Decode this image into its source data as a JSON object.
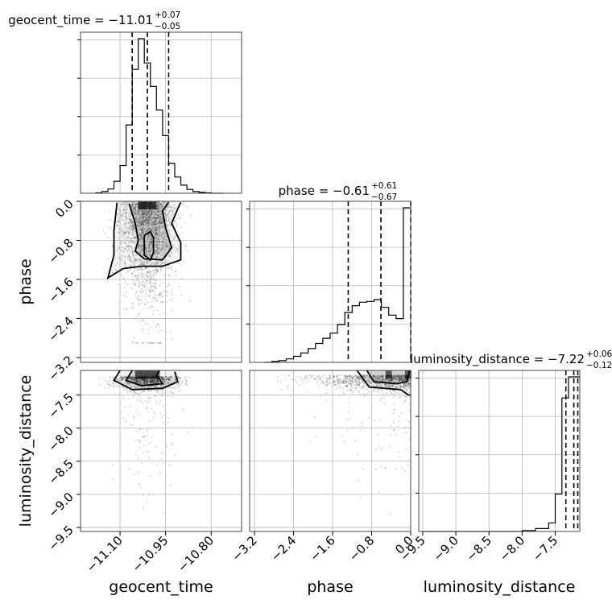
{
  "chart_data": {
    "type": "corner",
    "parameters": [
      "geocent_time",
      "phase",
      "luminosity_distance"
    ],
    "axis_labels": {
      "geocent_time": "geocent_time",
      "phase": "phase",
      "luminosity_distance": "luminosity_distance"
    },
    "ranges": {
      "geocent_time": [
        -11.23,
        -10.7
      ],
      "phase": [
        -3.3,
        0.0
      ],
      "luminosity_distance": [
        -9.56,
        -7.13
      ]
    },
    "ticks": {
      "geocent_time": [
        -11.1,
        -10.95,
        -10.8
      ],
      "phase": [
        -3.2,
        -2.4,
        -1.6,
        -0.8,
        0.0
      ],
      "luminosity_distance": [
        -9.5,
        -9.0,
        -8.5,
        -8.0,
        -7.5
      ]
    },
    "tick_labels": {
      "geocent_time": [
        "−11.10",
        "−10.95",
        "−10.80"
      ],
      "phase_y": [
        "−3.2",
        "−2.4",
        "−1.6",
        "−0.8",
        "0.0"
      ],
      "phase_x": [
        "−3.2",
        "−2.4",
        "−1.6",
        "−0.8",
        "0.0"
      ],
      "luminosity_distance_y": [
        "−9.5",
        "−9.0",
        "−8.5",
        "−8.0",
        "−7.5"
      ],
      "luminosity_distance_x": [
        "−9.5",
        "−9.0",
        "−8.5",
        "−8.0",
        "−7.5"
      ]
    },
    "titles": {
      "geocent_time": {
        "text": "geocent_time = −11.01",
        "plus": "+0.07",
        "minus": "−0.05"
      },
      "phase": {
        "text": "phase = −0.61",
        "plus": "+0.61",
        "minus": "−0.67"
      },
      "luminosity_distance": {
        "text": "luminosity_distance = −7.22",
        "plus": "+0.06",
        "minus": "−0.12"
      }
    },
    "quantiles": {
      "geocent_time": [
        -11.06,
        -11.01,
        -10.94
      ],
      "phase": [
        -1.28,
        -0.61,
        0.0
      ],
      "luminosity_distance": [
        -7.34,
        -7.22,
        -7.16
      ]
    },
    "histograms": {
      "geocent_time": {
        "edges": [
          -11.18,
          -11.16,
          -11.14,
          -11.12,
          -11.1,
          -11.08,
          -11.06,
          -11.04,
          -11.02,
          -11.0,
          -10.98,
          -10.96,
          -10.94,
          -10.92,
          -10.9,
          -10.88,
          -10.86,
          -10.84,
          -10.82,
          -10.8,
          -10.78,
          -10.76
        ],
        "counts": [
          1,
          4,
          10,
          28,
          65,
          160,
          290,
          362,
          305,
          250,
          195,
          135,
          70,
          38,
          19,
          9,
          4,
          2,
          1,
          0,
          0
        ]
      },
      "phase": {
        "edges": [
          -3.0,
          -2.85,
          -2.7,
          -2.55,
          -2.4,
          -2.25,
          -2.1,
          -1.95,
          -1.8,
          -1.65,
          -1.5,
          -1.35,
          -1.2,
          -1.05,
          -0.9,
          -0.75,
          -0.6,
          -0.45,
          -0.3,
          -0.15,
          0.0
        ],
        "counts": [
          0,
          1,
          2,
          4,
          7,
          11,
          16,
          22,
          28,
          34,
          44,
          58,
          66,
          70,
          71,
          73,
          64,
          55,
          51,
          180
        ]
      },
      "luminosity_distance": {
        "edges": [
          -9.5,
          -9.1,
          -8.7,
          -8.3,
          -8.0,
          -7.8,
          -7.6,
          -7.5,
          -7.4,
          -7.3,
          -7.2,
          -7.13
        ],
        "counts": [
          0,
          0,
          0,
          0,
          1,
          3,
          9,
          39,
          139,
          161,
          161
        ]
      }
    },
    "density_2d": {
      "phase_vs_geocent_time": {
        "x_range": [
          -11.14,
          -10.89
        ],
        "y_range": [
          -1.6,
          0.0
        ],
        "contours": [
          [
            [
              -11.07,
              -0.05
            ],
            [
              -11.05,
              -0.45
            ],
            [
              -11.04,
              -0.8
            ],
            [
              -11.05,
              -1.02
            ],
            [
              -11.02,
              -1.18
            ],
            [
              -10.96,
              -1.2
            ],
            [
              -10.93,
              -0.95
            ],
            [
              -10.95,
              -0.55
            ],
            [
              -10.96,
              -0.2
            ],
            [
              -10.94,
              -0.02
            ]
          ],
          [
            [
              -11.11,
              -0.03
            ],
            [
              -11.12,
              -0.6
            ],
            [
              -11.12,
              -1.1
            ],
            [
              -11.14,
              -1.57
            ],
            [
              -11.09,
              -1.38
            ],
            [
              -11.03,
              -1.33
            ],
            [
              -10.96,
              -1.33
            ],
            [
              -10.9,
              -1.2
            ],
            [
              -10.9,
              -0.85
            ],
            [
              -10.93,
              -0.45
            ],
            [
              -10.91,
              -0.15
            ],
            [
              -10.9,
              -0.02
            ]
          ],
          [
            [
              -11.02,
              -0.7
            ],
            [
              -11.02,
              -1.1
            ],
            [
              -11.0,
              -1.2
            ],
            [
              -10.99,
              -1.05
            ],
            [
              -10.99,
              -0.75
            ],
            [
              -11.0,
              -0.62
            ]
          ]
        ]
      },
      "luminosity_distance_vs_geocent_time": {
        "x_range": [
          -11.13,
          -10.92
        ],
        "y_range": [
          -7.43,
          -7.13
        ],
        "contours": [
          [
            [
              -11.06,
              -7.13
            ],
            [
              -11.08,
              -7.28
            ],
            [
              -11.03,
              -7.36
            ],
            [
              -10.96,
              -7.33
            ],
            [
              -10.98,
              -7.2
            ],
            [
              -10.97,
              -7.13
            ]
          ],
          [
            [
              -11.1,
              -7.13
            ],
            [
              -11.12,
              -7.28
            ],
            [
              -11.06,
              -7.42
            ],
            [
              -10.96,
              -7.4
            ],
            [
              -10.91,
              -7.3
            ],
            [
              -10.92,
              -7.15
            ]
          ]
        ]
      },
      "luminosity_distance_vs_phase": {
        "x_range": [
          -1.1,
          0.0
        ],
        "y_range": [
          -7.5,
          -7.13
        ],
        "contours": [
          [
            [
              -0.9,
              -7.13
            ],
            [
              -0.75,
              -7.3
            ],
            [
              -0.3,
              -7.33
            ],
            [
              -0.08,
              -7.3
            ],
            [
              -0.02,
              -7.13
            ]
          ],
          [
            [
              -1.1,
              -7.13
            ],
            [
              -0.85,
              -7.38
            ],
            [
              -0.2,
              -7.42
            ],
            [
              -0.05,
              -7.5
            ],
            [
              0.0,
              -7.5
            ]
          ]
        ]
      }
    },
    "grid": true,
    "layout": "lower-triangle 3x3"
  }
}
